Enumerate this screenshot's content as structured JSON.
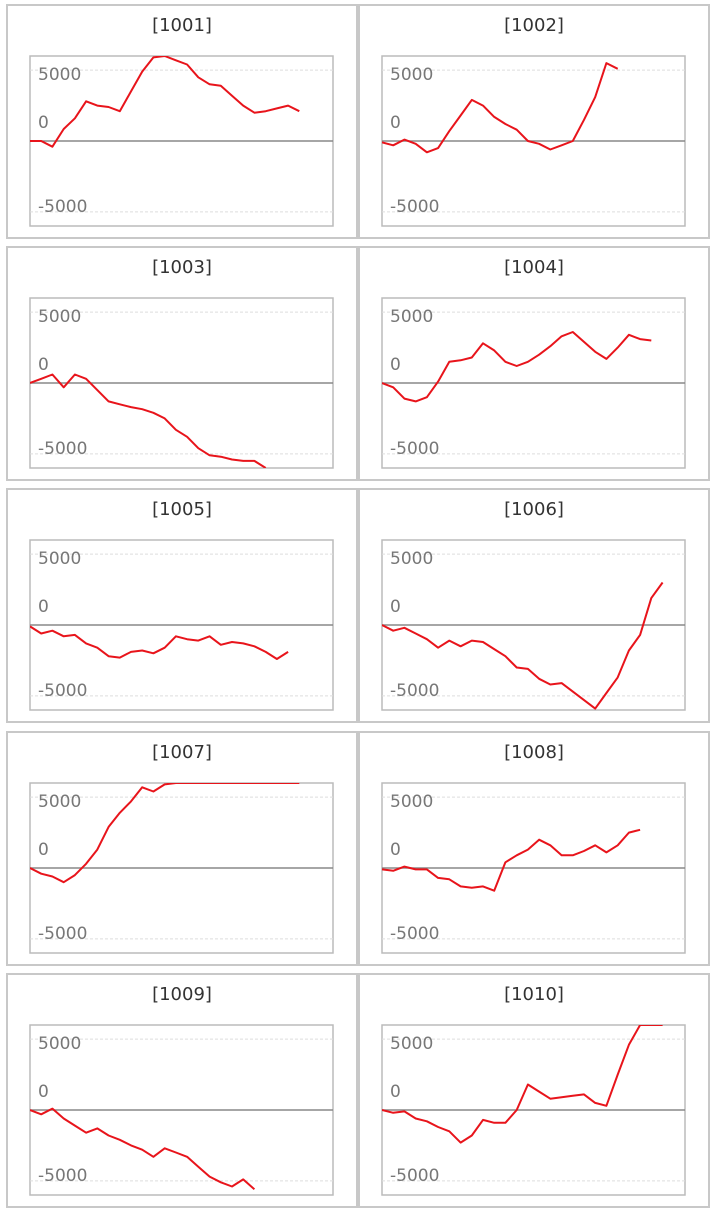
{
  "chart_data": [
    {
      "type": "line",
      "title": "[1001]",
      "categories": [
        null,
        null,
        null,
        null,
        null,
        null,
        null,
        null,
        null,
        null,
        null,
        null,
        null,
        null,
        null,
        null,
        null,
        null,
        null,
        null,
        null,
        null,
        null,
        null,
        null,
        null,
        null
      ],
      "series": [
        {
          "color": "#e8141b",
          "values": [
            0,
            0,
            -400,
            850,
            1600,
            2800,
            2500,
            2400,
            2100,
            3500,
            4900,
            5900,
            6000,
            5700,
            5400,
            4500,
            4000,
            3900,
            3200,
            2500,
            2000,
            2100,
            2300,
            2500,
            2100,
            null,
            null
          ]
        }
      ],
      "ylim": [
        -6000,
        6000
      ],
      "yticks": [
        -5000,
        0,
        5000
      ]
    },
    {
      "type": "line",
      "title": "[1002]",
      "categories": [
        null,
        null,
        null,
        null,
        null,
        null,
        null,
        null,
        null,
        null,
        null,
        null,
        null,
        null,
        null,
        null,
        null,
        null,
        null,
        null,
        null,
        null,
        null,
        null,
        null,
        null,
        null
      ],
      "series": [
        {
          "color": "#e8141b",
          "values": [
            -100,
            -300,
            100,
            -200,
            -800,
            -500,
            700,
            1800,
            2900,
            2500,
            1700,
            1200,
            800,
            0,
            -200,
            -600,
            -300,
            0,
            1500,
            3100,
            5500,
            5100,
            null,
            null,
            null,
            null,
            null
          ]
        }
      ],
      "ylim": [
        -6000,
        6000
      ],
      "yticks": [
        -5000,
        0,
        5000
      ]
    },
    {
      "type": "line",
      "title": "[1003]",
      "categories": [
        null,
        null,
        null,
        null,
        null,
        null,
        null,
        null,
        null,
        null,
        null,
        null,
        null,
        null,
        null,
        null,
        null,
        null,
        null,
        null,
        null,
        null,
        null,
        null,
        null,
        null,
        null
      ],
      "series": [
        {
          "color": "#e8141b",
          "values": [
            0,
            300,
            600,
            -300,
            600,
            300,
            -500,
            -1300,
            -1500,
            -1700,
            -1850,
            -2100,
            -2500,
            -3300,
            -3800,
            -4600,
            -5100,
            -5200,
            -5400,
            -5500,
            -5500,
            -6000,
            null,
            null,
            null,
            null,
            null
          ]
        }
      ],
      "ylim": [
        -6000,
        6000
      ],
      "yticks": [
        -5000,
        0,
        5000
      ]
    },
    {
      "type": "line",
      "title": "[1004]",
      "categories": [
        null,
        null,
        null,
        null,
        null,
        null,
        null,
        null,
        null,
        null,
        null,
        null,
        null,
        null,
        null,
        null,
        null,
        null,
        null,
        null,
        null,
        null,
        null,
        null,
        null,
        null,
        null
      ],
      "series": [
        {
          "color": "#e8141b",
          "values": [
            0,
            -300,
            -1100,
            -1300,
            -1000,
            100,
            1500,
            1600,
            1800,
            2800,
            2300,
            1500,
            1200,
            1500,
            2000,
            2600,
            3300,
            3600,
            2900,
            2200,
            1700,
            2500,
            3400,
            3100,
            3000,
            null,
            null
          ]
        }
      ],
      "ylim": [
        -6000,
        6000
      ],
      "yticks": [
        -5000,
        0,
        5000
      ]
    },
    {
      "type": "line",
      "title": "[1005]",
      "categories": [
        null,
        null,
        null,
        null,
        null,
        null,
        null,
        null,
        null,
        null,
        null,
        null,
        null,
        null,
        null,
        null,
        null,
        null,
        null,
        null,
        null,
        null,
        null,
        null,
        null,
        null,
        null
      ],
      "series": [
        {
          "color": "#e8141b",
          "values": [
            -100,
            -600,
            -400,
            -800,
            -700,
            -1300,
            -1600,
            -2200,
            -2300,
            -1900,
            -1800,
            -2000,
            -1600,
            -800,
            -1000,
            -1100,
            -800,
            -1400,
            -1200,
            -1300,
            -1500,
            -1900,
            -2400,
            -1900,
            null,
            null,
            null
          ]
        }
      ],
      "ylim": [
        -6000,
        6000
      ],
      "yticks": [
        -5000,
        0,
        5000
      ]
    },
    {
      "type": "line",
      "title": "[1006]",
      "categories": [
        null,
        null,
        null,
        null,
        null,
        null,
        null,
        null,
        null,
        null,
        null,
        null,
        null,
        null,
        null,
        null,
        null,
        null,
        null,
        null,
        null,
        null,
        null,
        null,
        null,
        null,
        null
      ],
      "series": [
        {
          "color": "#e8141b",
          "values": [
            0,
            -400,
            -200,
            -600,
            -1000,
            -1600,
            -1100,
            -1500,
            -1100,
            -1200,
            -1700,
            -2200,
            -3000,
            -3100,
            -3800,
            -4200,
            -4100,
            -4700,
            -5300,
            -5900,
            -4800,
            -3700,
            -1800,
            -700,
            1900,
            3000,
            null
          ]
        }
      ],
      "ylim": [
        -6000,
        6000
      ],
      "yticks": [
        -5000,
        0,
        5000
      ]
    },
    {
      "type": "line",
      "title": "[1007]",
      "categories": [
        null,
        null,
        null,
        null,
        null,
        null,
        null,
        null,
        null,
        null,
        null,
        null,
        null,
        null,
        null,
        null,
        null,
        null,
        null,
        null,
        null,
        null,
        null,
        null,
        null,
        null,
        null
      ],
      "series": [
        {
          "color": "#e8141b",
          "values": [
            0,
            -400,
            -600,
            -1000,
            -500,
            300,
            1300,
            2900,
            3900,
            4700,
            5700,
            5400,
            5900,
            6000,
            6000,
            6000,
            6000,
            6000,
            6000,
            6000,
            6000,
            6000,
            6000,
            6000,
            6000,
            null,
            null
          ]
        }
      ],
      "ylim": [
        -6000,
        6000
      ],
      "yticks": [
        -5000,
        0,
        5000
      ]
    },
    {
      "type": "line",
      "title": "[1008]",
      "categories": [
        null,
        null,
        null,
        null,
        null,
        null,
        null,
        null,
        null,
        null,
        null,
        null,
        null,
        null,
        null,
        null,
        null,
        null,
        null,
        null,
        null,
        null,
        null,
        null,
        null,
        null,
        null
      ],
      "series": [
        {
          "color": "#e8141b",
          "values": [
            -100,
            -200,
            100,
            -100,
            -100,
            -700,
            -800,
            -1300,
            -1400,
            -1300,
            -1600,
            400,
            900,
            1300,
            2000,
            1600,
            900,
            900,
            1200,
            1600,
            1100,
            1600,
            2500,
            2700,
            null,
            null,
            null
          ]
        }
      ],
      "ylim": [
        -6000,
        6000
      ],
      "yticks": [
        -5000,
        0,
        5000
      ]
    },
    {
      "type": "line",
      "title": "[1009]",
      "categories": [
        null,
        null,
        null,
        null,
        null,
        null,
        null,
        null,
        null,
        null,
        null,
        null,
        null,
        null,
        null,
        null,
        null,
        null,
        null,
        null,
        null,
        null,
        null,
        null,
        null,
        null,
        null
      ],
      "series": [
        {
          "color": "#e8141b",
          "values": [
            0,
            -300,
            100,
            -600,
            -1100,
            -1600,
            -1300,
            -1800,
            -2100,
            -2500,
            -2800,
            -3300,
            -2700,
            -3000,
            -3300,
            -4000,
            -4700,
            -5100,
            -5400,
            -4900,
            -5600,
            null,
            null,
            null,
            null,
            null,
            null
          ]
        }
      ],
      "ylim": [
        -6000,
        6000
      ],
      "yticks": [
        -5000,
        0,
        5000
      ]
    },
    {
      "type": "line",
      "title": "[1010]",
      "categories": [
        null,
        null,
        null,
        null,
        null,
        null,
        null,
        null,
        null,
        null,
        null,
        null,
        null,
        null,
        null,
        null,
        null,
        null,
        null,
        null,
        null,
        null,
        null,
        null,
        null,
        null,
        null
      ],
      "series": [
        {
          "color": "#e8141b",
          "values": [
            0,
            -200,
            -100,
            -600,
            -800,
            -1200,
            -1500,
            -2300,
            -1800,
            -700,
            -900,
            -900,
            0,
            1800,
            1300,
            800,
            900,
            1000,
            1100,
            500,
            300,
            2500,
            4600,
            6000,
            6000,
            6000,
            null
          ]
        }
      ],
      "ylim": [
        -6000,
        6000
      ],
      "yticks": [
        -5000,
        0,
        5000
      ]
    }
  ]
}
